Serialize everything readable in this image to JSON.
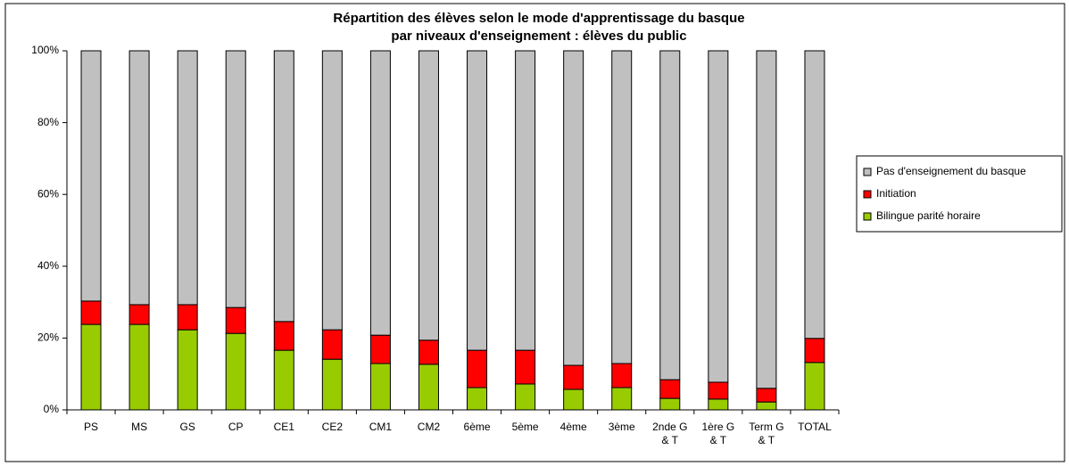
{
  "chart_data": {
    "type": "stacked_bar_100",
    "title": "Répartition des élèves selon le mode d'apprentissage du basque",
    "subtitle": "par niveaux d'enseignement :  élèves du public",
    "categories": [
      "PS",
      "MS",
      "GS",
      "CP",
      "CE1",
      "CE2",
      "CM1",
      "CM2",
      "6ème",
      "5ème",
      "4ème",
      "3ème",
      "2nde G & T",
      "1ère G & T",
      "Term G & T",
      "TOTAL"
    ],
    "series": [
      {
        "name": "Bilingue parité horaire",
        "color": "#99cc00",
        "values": [
          23.8,
          23.8,
          22.3,
          21.3,
          16.6,
          14.1,
          12.9,
          12.7,
          6.2,
          7.2,
          5.7,
          6.2,
          3.2,
          3.0,
          2.2,
          13.2
        ]
      },
      {
        "name": "Initiation",
        "color": "#ff0000",
        "values": [
          6.5,
          5.5,
          7.0,
          7.2,
          8.0,
          8.2,
          7.9,
          6.7,
          10.4,
          9.4,
          6.7,
          6.7,
          5.2,
          4.7,
          3.8,
          6.7
        ]
      },
      {
        "name": "Pas d'enseignement du basque",
        "color": "#c0c0c0",
        "values": [
          69.7,
          70.7,
          70.7,
          71.5,
          75.4,
          77.7,
          79.2,
          80.6,
          83.4,
          83.4,
          87.6,
          87.1,
          91.6,
          92.3,
          94.0,
          80.1
        ]
      }
    ],
    "ylim": [
      0,
      100
    ],
    "yticks": [
      {
        "value": 0,
        "label": "0%"
      },
      {
        "value": 20,
        "label": "20%"
      },
      {
        "value": 40,
        "label": "40%"
      },
      {
        "value": 60,
        "label": "60%"
      },
      {
        "value": 80,
        "label": "80%"
      },
      {
        "value": 100,
        "label": "100%"
      }
    ],
    "legend": "right"
  }
}
